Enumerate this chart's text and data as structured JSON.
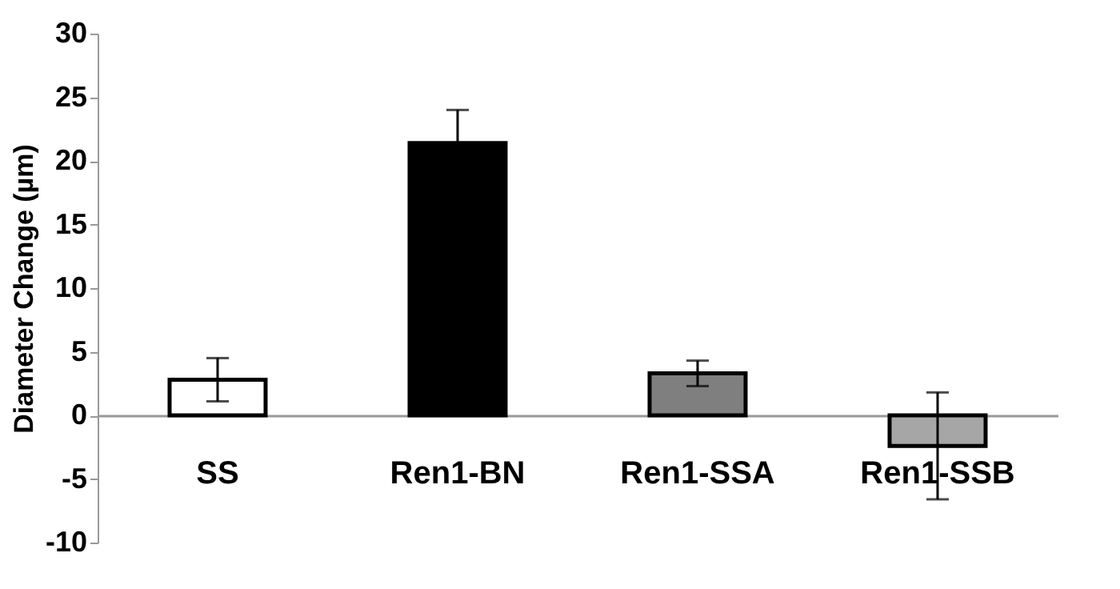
{
  "chart_data": {
    "type": "bar",
    "ylabel": "Diameter Change (µm)",
    "categories": [
      "SS",
      "Ren1-BN",
      "Ren1-SSA",
      "Ren1-SSB"
    ],
    "values": [
      2.8,
      21.4,
      3.3,
      -2.4
    ],
    "errors": [
      1.7,
      2.6,
      1.0,
      4.2
    ],
    "colors": [
      "#ffffff",
      "#000000",
      "#7f7f7f",
      "#a6a6a6"
    ],
    "ylim": [
      -10,
      30
    ],
    "yticks": [
      -10,
      -5,
      0,
      5,
      10,
      15,
      20,
      25,
      30
    ],
    "grid": false
  }
}
